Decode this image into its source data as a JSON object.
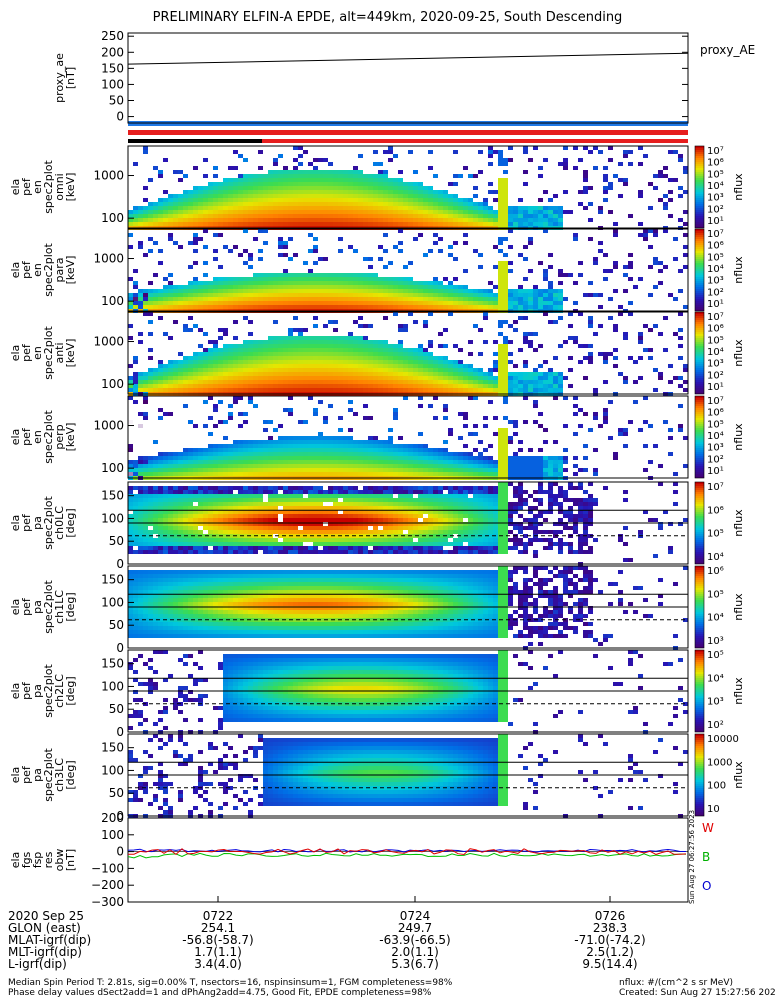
{
  "title": "PRELIMINARY ELFIN-A EPDE, alt=449km, 2020-09-25, South Descending",
  "colors": {
    "ae_line": "#000000",
    "bar_blue": "#1e78e6",
    "bar_red": "#e61e1e",
    "bar_black": "#000000",
    "trace_w": "#e00000",
    "trace_b": "#00c000",
    "trace_o": "#0000e0"
  },
  "chart_data": [
    {
      "type": "line",
      "panel": "proxy_ae",
      "ylabel": [
        "proxy_ae",
        "[nT]"
      ],
      "legend": "proxy_AE",
      "yticks": [
        "250",
        "200",
        "150",
        "100",
        "50",
        "0"
      ],
      "ylim": [
        -20,
        260
      ],
      "x": [
        "07:20:30",
        "07:27:40"
      ],
      "y": [
        163,
        197
      ]
    },
    {
      "type": "heatmap",
      "panel": "en",
      "ylabel": [
        "ela",
        "pef",
        "en",
        "spec2plot",
        "omni",
        "[keV]"
      ],
      "yscale": "log",
      "yticks": [
        "1000",
        "100"
      ],
      "colorbar": {
        "label": "nflux",
        "ticks": [
          "10⁷",
          "10⁶",
          "10⁵",
          "10⁴",
          "10³",
          "10²",
          "10¹"
        ]
      }
    },
    {
      "type": "heatmap",
      "panel": "en",
      "ylabel": [
        "ela",
        "pef",
        "en",
        "spec2plot",
        "para",
        "[keV]"
      ],
      "yscale": "log",
      "yticks": [
        "1000",
        "100"
      ],
      "colorbar": {
        "label": "nflux",
        "ticks": [
          "10⁷",
          "10⁶",
          "10⁵",
          "10⁴",
          "10³",
          "10²",
          "10¹"
        ]
      }
    },
    {
      "type": "heatmap",
      "panel": "en",
      "ylabel": [
        "ela",
        "pef",
        "en",
        "spec2plot",
        "anti",
        "[keV]"
      ],
      "yscale": "log",
      "yticks": [
        "1000",
        "100"
      ],
      "colorbar": {
        "label": "nflux",
        "ticks": [
          "10⁷",
          "10⁶",
          "10⁵",
          "10⁴",
          "10³",
          "10²",
          "10¹"
        ]
      }
    },
    {
      "type": "heatmap",
      "panel": "en",
      "ylabel": [
        "ela",
        "pef",
        "en",
        "spec2plot",
        "perp",
        "[keV]"
      ],
      "yscale": "log",
      "yticks": [
        "1000",
        "100"
      ],
      "colorbar": {
        "label": "nflux",
        "ticks": [
          "10⁷",
          "10⁶",
          "10⁵",
          "10⁴",
          "10³",
          "10²",
          "10¹"
        ]
      }
    },
    {
      "type": "heatmap",
      "panel": "pa",
      "ylabel": [
        "ela",
        "pef",
        "pa",
        "spec2plot",
        "ch0LC",
        "[deg]"
      ],
      "yticks": [
        "150",
        "100",
        "50",
        "0"
      ],
      "ylim": [
        0,
        180
      ],
      "colorbar": {
        "label": "nflux",
        "ticks": [
          "10⁷",
          "10⁶",
          "10⁵",
          "10⁴"
        ]
      }
    },
    {
      "type": "heatmap",
      "panel": "pa",
      "ylabel": [
        "ela",
        "pef",
        "pa",
        "spec2plot",
        "ch1LC",
        "[deg]"
      ],
      "yticks": [
        "150",
        "100",
        "50",
        "0"
      ],
      "ylim": [
        0,
        180
      ],
      "colorbar": {
        "label": "nflux",
        "ticks": [
          "10⁶",
          "10⁵",
          "10⁴",
          "10³"
        ]
      }
    },
    {
      "type": "heatmap",
      "panel": "pa",
      "ylabel": [
        "ela",
        "pef",
        "pa",
        "spec2plot",
        "ch2LC",
        "[deg]"
      ],
      "yticks": [
        "150",
        "100",
        "50",
        "0"
      ],
      "ylim": [
        0,
        180
      ],
      "colorbar": {
        "label": "nflux",
        "ticks": [
          "10⁵",
          "10⁴",
          "10³",
          "10²"
        ]
      }
    },
    {
      "type": "heatmap",
      "panel": "pa",
      "ylabel": [
        "ela",
        "pef",
        "pa",
        "spec2plot",
        "ch3LC",
        "[deg]"
      ],
      "yticks": [
        "150",
        "100",
        "50",
        "0"
      ],
      "ylim": [
        0,
        180
      ],
      "colorbar": {
        "label": "nflux",
        "ticks": [
          "10000",
          "1000",
          "100",
          "10"
        ]
      }
    },
    {
      "type": "line",
      "panel": "fgm",
      "ylabel": [
        "ela",
        "fgs",
        "fsp",
        "res",
        "obw",
        "[nT]"
      ],
      "yticks": [
        "200",
        "100",
        "0",
        "−100",
        "−200",
        "−300"
      ],
      "ylim": [
        -300,
        200
      ],
      "legend": [
        "W",
        "B",
        "O"
      ]
    }
  ],
  "footer": {
    "rows": [
      [
        "2020 Sep 25",
        "0722",
        "0724",
        "0726"
      ],
      [
        "GLON (east)",
        "254.1",
        "249.7",
        "238.3"
      ],
      [
        "MLAT-igrf(dip)",
        "-56.8(-58.7)",
        "-63.9(-66.5)",
        "-71.0(-74.2)"
      ],
      [
        "MLT-igrf(dip)",
        "1.7(1.1)",
        "2.0(1.1)",
        "2.5(1.2)"
      ],
      [
        "L-igrf(dip)",
        "3.4(4.0)",
        "5.3(6.7)",
        "9.5(14.4)"
      ]
    ],
    "note1": "Median Spin Period T: 2.81s, sig=0.00% T, nsectors=16, nspinsinsum=1, FGM completeness=98%",
    "note2": "Phase delay values dSect2add=1 and dPhAng2add=4.75, Good Fit, EPDE completeness=98%",
    "unit_note": "nflux: #/(cm^2 s sr MeV)",
    "created": "Created: Sun Aug 27 15:27:56 2023",
    "side_stamp": "Sun Aug 27 06:27:56 2023"
  }
}
